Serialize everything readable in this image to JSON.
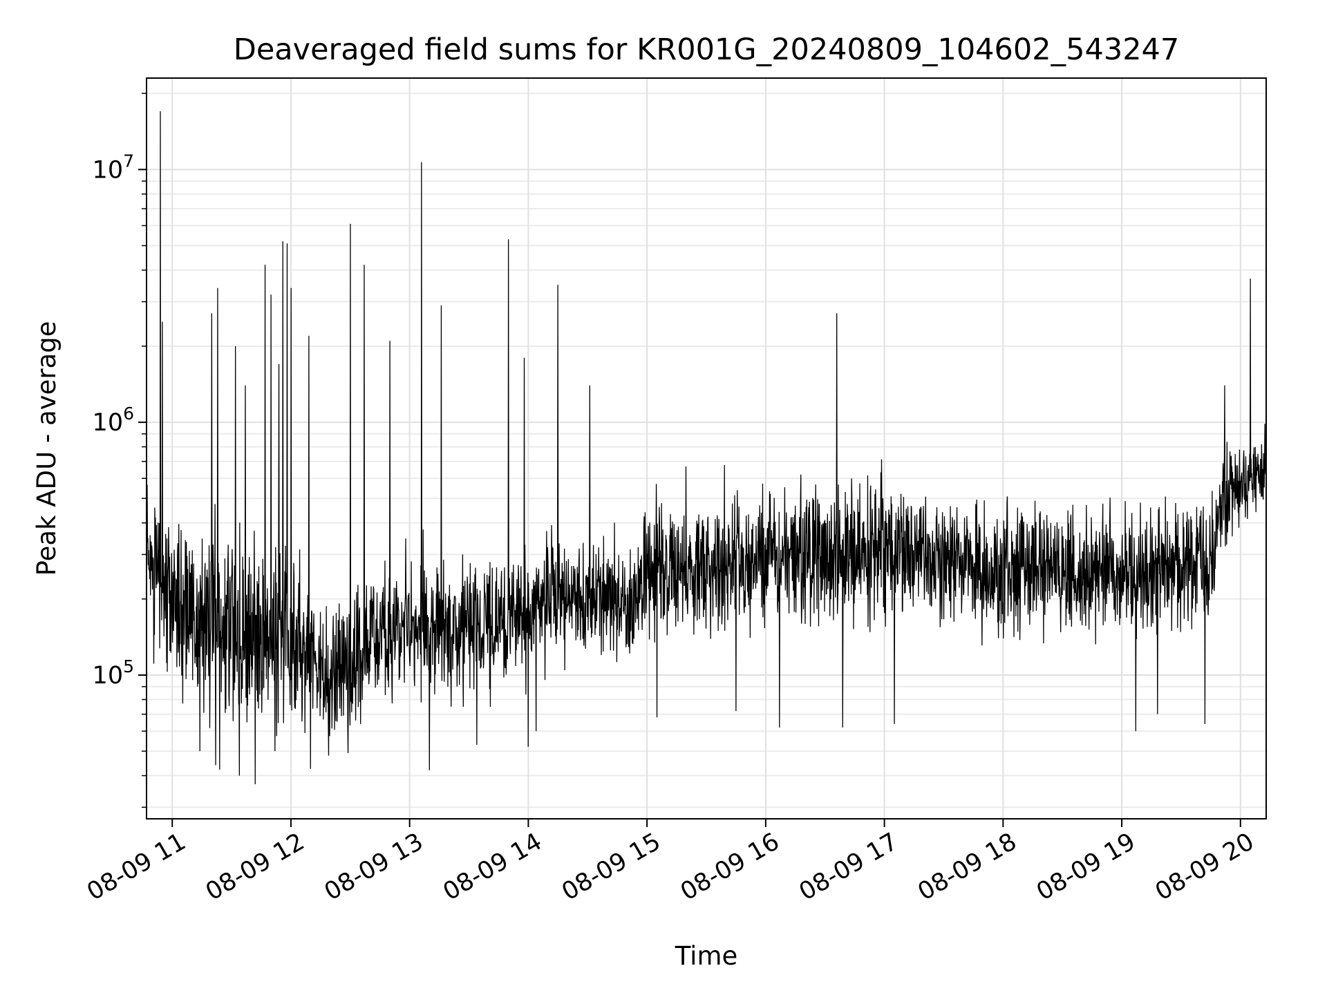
{
  "chart_data": {
    "type": "line",
    "title": "Deaveraged field sums for KR001G_20240809_104602_543247",
    "xlabel": "Time",
    "ylabel": "Peak ADU - average",
    "yscale": "log",
    "ylim": [
      27000,
      23000000
    ],
    "xlim": [
      "2024-08-09 10:47",
      "2024-08-09 20:13"
    ],
    "grid": true,
    "legend": "none",
    "line_color": "#000000",
    "x_ticks": [
      {
        "t": "2024-08-09 11:00",
        "label": "08-09 11"
      },
      {
        "t": "2024-08-09 12:00",
        "label": "08-09 12"
      },
      {
        "t": "2024-08-09 13:00",
        "label": "08-09 13"
      },
      {
        "t": "2024-08-09 14:00",
        "label": "08-09 14"
      },
      {
        "t": "2024-08-09 15:00",
        "label": "08-09 15"
      },
      {
        "t": "2024-08-09 16:00",
        "label": "08-09 16"
      },
      {
        "t": "2024-08-09 17:00",
        "label": "08-09 17"
      },
      {
        "t": "2024-08-09 18:00",
        "label": "08-09 18"
      },
      {
        "t": "2024-08-09 19:00",
        "label": "08-09 19"
      },
      {
        "t": "2024-08-09 20:00",
        "label": "08-09 20"
      }
    ],
    "y_ticks": [
      {
        "value": 100000,
        "base": "10",
        "exp": "5"
      },
      {
        "value": 1000000,
        "base": "10",
        "exp": "6"
      },
      {
        "value": 10000000,
        "base": "10",
        "exp": "7"
      }
    ],
    "baseline": [
      {
        "t": "2024-08-09 10:47",
        "median": 300000,
        "spread": 2.6
      },
      {
        "t": "2024-08-09 11:00",
        "median": 170000,
        "spread": 2.8
      },
      {
        "t": "2024-08-09 11:30",
        "median": 150000,
        "spread": 3.2
      },
      {
        "t": "2024-08-09 12:00",
        "median": 140000,
        "spread": 3.0
      },
      {
        "t": "2024-08-09 12:20",
        "median": 90000,
        "spread": 2.2
      },
      {
        "t": "2024-08-09 12:40",
        "median": 130000,
        "spread": 2.5
      },
      {
        "t": "2024-08-09 13:00",
        "median": 150000,
        "spread": 2.3
      },
      {
        "t": "2024-08-09 13:30",
        "median": 155000,
        "spread": 2.2
      },
      {
        "t": "2024-08-09 14:00",
        "median": 180000,
        "spread": 2.2
      },
      {
        "t": "2024-08-09 14:30",
        "median": 210000,
        "spread": 2.0
      },
      {
        "t": "2024-08-09 14:55",
        "median": 190000,
        "spread": 2.0
      },
      {
        "t": "2024-08-09 15:00",
        "median": 260000,
        "spread": 2.2
      },
      {
        "t": "2024-08-09 16:00",
        "median": 290000,
        "spread": 2.2
      },
      {
        "t": "2024-08-09 17:00",
        "median": 300000,
        "spread": 2.2
      },
      {
        "t": "2024-08-09 18:00",
        "median": 260000,
        "spread": 2.2
      },
      {
        "t": "2024-08-09 19:00",
        "median": 250000,
        "spread": 2.2
      },
      {
        "t": "2024-08-09 19:45",
        "median": 270000,
        "spread": 2.2
      },
      {
        "t": "2024-08-09 19:50",
        "median": 480000,
        "spread": 1.8
      },
      {
        "t": "2024-08-09 20:13",
        "median": 650000,
        "spread": 1.6
      }
    ],
    "spikes": [
      {
        "t": "2024-08-09 10:54",
        "y": 17000000
      },
      {
        "t": "2024-08-09 10:55",
        "y": 2500000
      },
      {
        "t": "2024-08-09 11:23",
        "y": 3400000
      },
      {
        "t": "2024-08-09 11:20",
        "y": 2700000
      },
      {
        "t": "2024-08-09 11:32",
        "y": 2000000
      },
      {
        "t": "2024-08-09 11:37",
        "y": 1400000
      },
      {
        "t": "2024-08-09 11:47",
        "y": 4200000
      },
      {
        "t": "2024-08-09 11:50",
        "y": 3200000
      },
      {
        "t": "2024-08-09 11:54",
        "y": 1700000
      },
      {
        "t": "2024-08-09 11:56",
        "y": 5200000
      },
      {
        "t": "2024-08-09 11:58",
        "y": 5100000
      },
      {
        "t": "2024-08-09 12:00",
        "y": 3400000
      },
      {
        "t": "2024-08-09 12:09",
        "y": 2200000
      },
      {
        "t": "2024-08-09 12:30",
        "y": 6100000
      },
      {
        "t": "2024-08-09 12:37",
        "y": 4200000
      },
      {
        "t": "2024-08-09 12:50",
        "y": 2100000
      },
      {
        "t": "2024-08-09 13:06",
        "y": 10700000
      },
      {
        "t": "2024-08-09 13:16",
        "y": 2900000
      },
      {
        "t": "2024-08-09 13:50",
        "y": 5300000
      },
      {
        "t": "2024-08-09 13:58",
        "y": 1800000
      },
      {
        "t": "2024-08-09 14:15",
        "y": 3500000
      },
      {
        "t": "2024-08-09 14:31",
        "y": 1400000
      },
      {
        "t": "2024-08-09 16:36",
        "y": 2700000
      },
      {
        "t": "2024-08-09 19:52",
        "y": 1400000
      },
      {
        "t": "2024-08-09 20:05",
        "y": 3700000
      }
    ],
    "dips": [
      {
        "t": "2024-08-09 11:14",
        "y": 50000
      },
      {
        "t": "2024-08-09 11:22",
        "y": 44000
      },
      {
        "t": "2024-08-09 11:34",
        "y": 40000
      },
      {
        "t": "2024-08-09 11:42",
        "y": 37000
      },
      {
        "t": "2024-08-09 11:52",
        "y": 50000
      },
      {
        "t": "2024-08-09 12:19",
        "y": 48000
      },
      {
        "t": "2024-08-09 13:10",
        "y": 42000
      },
      {
        "t": "2024-08-09 13:34",
        "y": 53000
      },
      {
        "t": "2024-08-09 14:00",
        "y": 52000
      },
      {
        "t": "2024-08-09 14:04",
        "y": 60000
      },
      {
        "t": "2024-08-09 15:05",
        "y": 68000
      },
      {
        "t": "2024-08-09 15:45",
        "y": 72000
      },
      {
        "t": "2024-08-09 16:07",
        "y": 62000
      },
      {
        "t": "2024-08-09 16:39",
        "y": 62000
      },
      {
        "t": "2024-08-09 17:05",
        "y": 64000
      },
      {
        "t": "2024-08-09 19:07",
        "y": 60000
      },
      {
        "t": "2024-08-09 19:18",
        "y": 70000
      },
      {
        "t": "2024-08-09 19:42",
        "y": 64000
      }
    ]
  }
}
